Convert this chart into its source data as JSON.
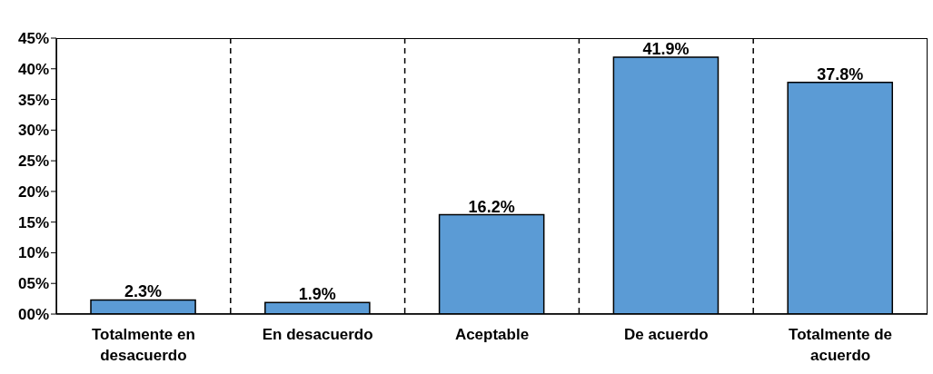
{
  "chart_data": {
    "type": "bar",
    "categories": [
      "Totalmente en desacuerdo",
      "En desacuerdo",
      "Aceptable",
      "De acuerdo",
      "Totalmente de acuerdo"
    ],
    "values": [
      2.3,
      1.9,
      16.2,
      41.9,
      37.8
    ],
    "value_labels": [
      "2.3%",
      "1.9%",
      "16.2%",
      "41.9%",
      "37.8%"
    ],
    "color": "#5b9bd5",
    "ylim": [
      0,
      45
    ],
    "yticks": [
      {
        "value": 0,
        "label": "00%"
      },
      {
        "value": 5,
        "label": "05%"
      },
      {
        "value": 10,
        "label": "10%"
      },
      {
        "value": 15,
        "label": "15%"
      },
      {
        "value": 20,
        "label": "20%"
      },
      {
        "value": 25,
        "label": "25%"
      },
      {
        "value": 30,
        "label": "30%"
      },
      {
        "value": 35,
        "label": "35%"
      },
      {
        "value": 40,
        "label": "40%"
      },
      {
        "value": 45,
        "label": "45%"
      }
    ],
    "grid": "x"
  }
}
